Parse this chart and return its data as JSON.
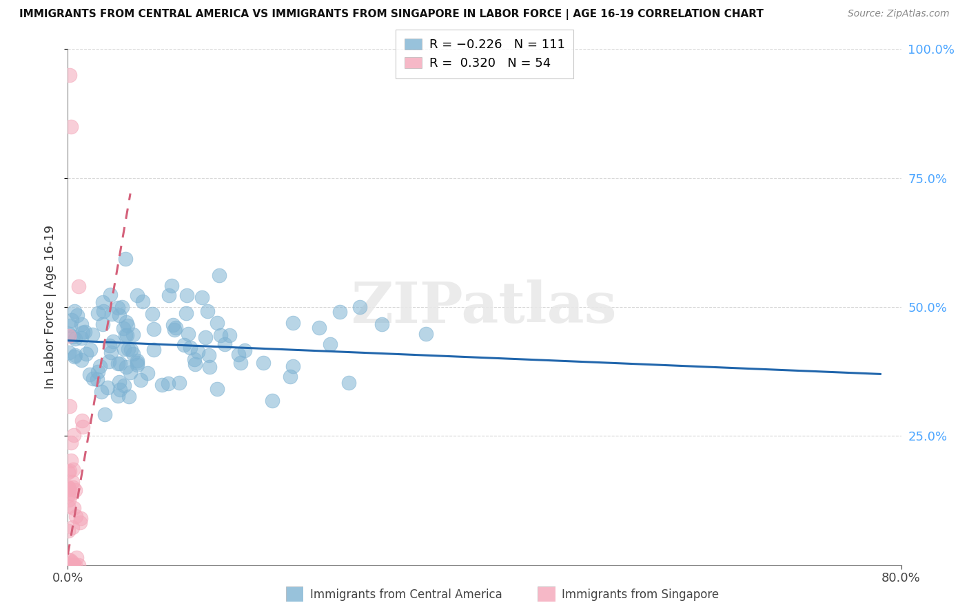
{
  "title": "IMMIGRANTS FROM CENTRAL AMERICA VS IMMIGRANTS FROM SINGAPORE IN LABOR FORCE | AGE 16-19 CORRELATION CHART",
  "source": "Source: ZipAtlas.com",
  "r_blue": -0.226,
  "n_blue": 111,
  "r_pink": 0.32,
  "n_pink": 54,
  "ylabel": "In Labor Force | Age 16-19",
  "xlim": [
    0.0,
    0.8
  ],
  "ylim": [
    0.0,
    1.0
  ],
  "yticks": [
    0.25,
    0.5,
    0.75,
    1.0
  ],
  "ytick_labels": [
    "25.0%",
    "50.0%",
    "75.0%",
    "100.0%"
  ],
  "xticks": [
    0.0,
    0.8
  ],
  "xtick_labels": [
    "0.0%",
    "80.0%"
  ],
  "blue_color": "#7fb3d3",
  "pink_color": "#f4a7b9",
  "blue_line_color": "#2166ac",
  "pink_line_color": "#d4607a",
  "right_tick_color": "#4da6ff",
  "watermark_text": "ZIPatlas",
  "legend_label_blue": "R = −0.226   N = 111",
  "legend_label_pink": "R =  0.320   N = 54",
  "blue_trend_x0": 0.0,
  "blue_trend_y0": 0.435,
  "blue_trend_x1": 0.78,
  "blue_trend_y1": 0.37,
  "pink_trend_x0": 0.0,
  "pink_trend_y0": 0.02,
  "pink_trend_x1": 0.06,
  "pink_trend_y1": 0.72,
  "background_color": "#ffffff",
  "grid_color": "#cccccc",
  "bottom_legend_blue": "Immigrants from Central America",
  "bottom_legend_pink": "Immigrants from Singapore"
}
